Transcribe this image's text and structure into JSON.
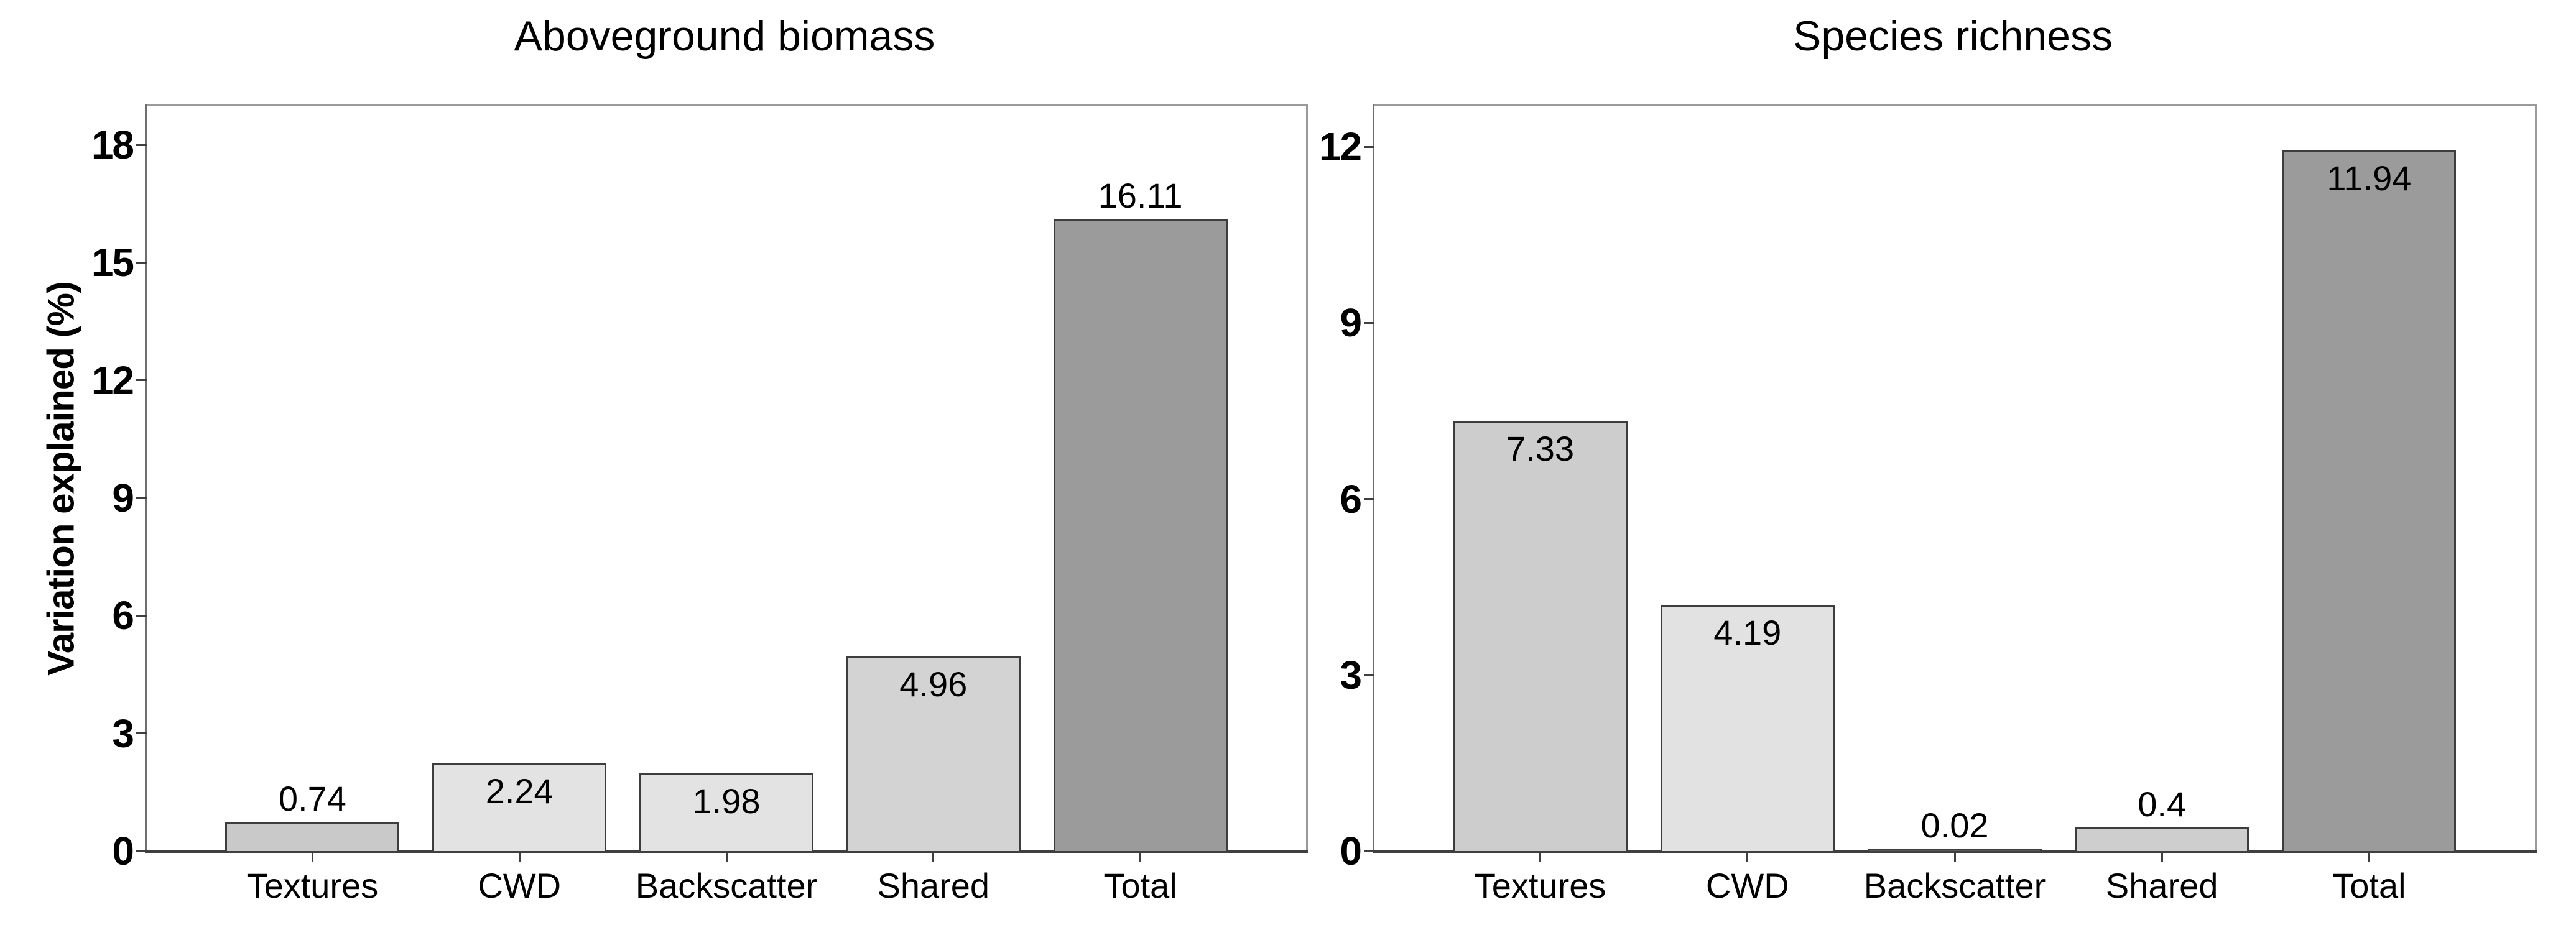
{
  "figure": {
    "background": "#ffffff",
    "frame_color": "#9a9a9a",
    "axis_line_color": "#6e6e6e",
    "baseline_color": "#3f3f3f",
    "tick_color": "#3f3f3f",
    "text_color": "#000000"
  },
  "chart_data": [
    {
      "type": "bar",
      "title": "Aboveground biomass",
      "xlabel": "",
      "ylabel": "Variation explained (%)",
      "categories": [
        "Textures",
        "CWD",
        "Backscatter",
        "Shared",
        "Total"
      ],
      "values": [
        0.74,
        2.24,
        1.98,
        4.96,
        16.11
      ],
      "value_labels": [
        "0.74",
        "2.24",
        "1.98",
        "4.96",
        "16.11"
      ],
      "label_position": [
        "above",
        "inside",
        "inside",
        "inside",
        "above"
      ],
      "bar_colors": [
        "#c9c9c9",
        "#e3e3e3",
        "#e3e3e3",
        "#d3d3d3",
        "#9b9b9b"
      ],
      "bar_border_color": "#3d3d3d",
      "yticks": [
        0,
        3,
        6,
        9,
        12,
        15,
        18
      ],
      "ylim": [
        0,
        19
      ],
      "grid": false,
      "legend": null
    },
    {
      "type": "bar",
      "title": "Species richness",
      "xlabel": "",
      "ylabel": "",
      "categories": [
        "Textures",
        "CWD",
        "Backscatter",
        "Shared",
        "Total"
      ],
      "values": [
        7.33,
        4.19,
        0.02,
        0.4,
        11.94
      ],
      "value_labels": [
        "7.33",
        "4.19",
        "0.02",
        "0.4",
        "11.94"
      ],
      "label_position": [
        "inside",
        "inside",
        "above",
        "above",
        "inside"
      ],
      "bar_colors": [
        "#cdcdcd",
        "#e2e2e2",
        "#5a5a5a",
        "#cecece",
        "#9b9b9b"
      ],
      "bar_border_color": "#3d3d3d",
      "yticks": [
        0,
        3,
        6,
        9,
        12
      ],
      "ylim": [
        0,
        12.7
      ],
      "grid": false,
      "legend": null
    }
  ]
}
